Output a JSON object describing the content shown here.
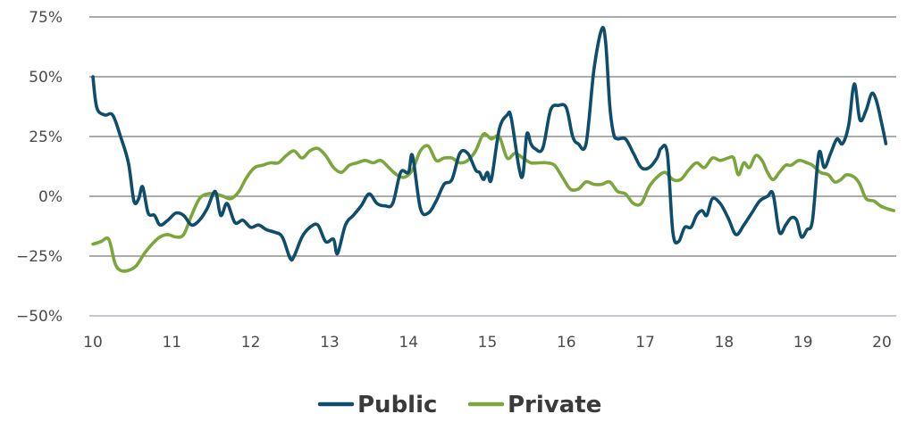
{
  "chart_data": {
    "type": "line",
    "title": "",
    "xlabel": "",
    "ylabel": "",
    "x_ticks": [
      "10",
      "11",
      "12",
      "13",
      "14",
      "15",
      "16",
      "17",
      "18",
      "19",
      "20"
    ],
    "y_ticks": [
      "75%",
      "50%",
      "25%",
      "0%",
      "−25%",
      "−50%"
    ],
    "xlim": [
      10,
      20.2
    ],
    "ylim": [
      -50,
      75
    ],
    "grid": "horizontal",
    "legend_position": "bottom-center",
    "series": [
      {
        "name": "Public",
        "color": "#0e4d6b",
        "points": [
          [
            10.0,
            50
          ],
          [
            10.05,
            37
          ],
          [
            10.15,
            34
          ],
          [
            10.25,
            34
          ],
          [
            10.35,
            25
          ],
          [
            10.45,
            14
          ],
          [
            10.52,
            -2
          ],
          [
            10.58,
            -1
          ],
          [
            10.63,
            4
          ],
          [
            10.7,
            -7
          ],
          [
            10.78,
            -8
          ],
          [
            10.85,
            -12
          ],
          [
            10.95,
            -10
          ],
          [
            11.05,
            -7
          ],
          [
            11.15,
            -8
          ],
          [
            11.25,
            -12
          ],
          [
            11.35,
            -10
          ],
          [
            11.45,
            -5
          ],
          [
            11.55,
            2
          ],
          [
            11.62,
            -8
          ],
          [
            11.7,
            -3
          ],
          [
            11.8,
            -11
          ],
          [
            11.9,
            -10
          ],
          [
            12.0,
            -13
          ],
          [
            12.1,
            -12
          ],
          [
            12.2,
            -14
          ],
          [
            12.3,
            -15
          ],
          [
            12.4,
            -17
          ],
          [
            12.5,
            -26
          ],
          [
            12.55,
            -25
          ],
          [
            12.65,
            -17
          ],
          [
            12.75,
            -13
          ],
          [
            12.85,
            -12
          ],
          [
            12.95,
            -19
          ],
          [
            13.05,
            -18
          ],
          [
            13.1,
            -24
          ],
          [
            13.2,
            -12
          ],
          [
            13.3,
            -8
          ],
          [
            13.4,
            -4
          ],
          [
            13.5,
            1
          ],
          [
            13.6,
            -3
          ],
          [
            13.7,
            -4
          ],
          [
            13.8,
            -3
          ],
          [
            13.9,
            10
          ],
          [
            14.0,
            10
          ],
          [
            14.05,
            17
          ],
          [
            14.15,
            -5
          ],
          [
            14.25,
            -7
          ],
          [
            14.35,
            -2
          ],
          [
            14.45,
            5
          ],
          [
            14.55,
            7
          ],
          [
            14.65,
            18
          ],
          [
            14.75,
            18
          ],
          [
            14.85,
            11
          ],
          [
            14.9,
            10
          ],
          [
            14.95,
            7
          ],
          [
            15.0,
            10
          ],
          [
            15.05,
            7
          ],
          [
            15.15,
            28
          ],
          [
            15.25,
            34
          ],
          [
            15.3,
            33
          ],
          [
            15.4,
            12
          ],
          [
            15.45,
            9
          ],
          [
            15.5,
            26
          ],
          [
            15.55,
            22
          ],
          [
            15.6,
            20
          ],
          [
            15.7,
            20
          ],
          [
            15.8,
            36
          ],
          [
            15.9,
            38
          ],
          [
            16.0,
            37
          ],
          [
            16.08,
            25
          ],
          [
            16.15,
            22
          ],
          [
            16.25,
            22
          ],
          [
            16.35,
            53
          ],
          [
            16.45,
            70
          ],
          [
            16.5,
            64
          ],
          [
            16.55,
            38
          ],
          [
            16.6,
            26
          ],
          [
            16.65,
            24
          ],
          [
            16.75,
            24
          ],
          [
            16.85,
            18
          ],
          [
            16.95,
            12
          ],
          [
            17.05,
            12
          ],
          [
            17.15,
            16
          ],
          [
            17.2,
            20
          ],
          [
            17.28,
            18
          ],
          [
            17.35,
            -15
          ],
          [
            17.42,
            -19
          ],
          [
            17.5,
            -13
          ],
          [
            17.58,
            -13
          ],
          [
            17.65,
            -8
          ],
          [
            17.72,
            -6
          ],
          [
            17.78,
            -8
          ],
          [
            17.85,
            -1
          ],
          [
            17.95,
            -3
          ],
          [
            18.05,
            -9
          ],
          [
            18.15,
            -16
          ],
          [
            18.25,
            -12
          ],
          [
            18.35,
            -7
          ],
          [
            18.45,
            -2
          ],
          [
            18.55,
            0
          ],
          [
            18.62,
            1
          ],
          [
            18.7,
            -15
          ],
          [
            18.78,
            -12
          ],
          [
            18.85,
            -9
          ],
          [
            18.92,
            -10
          ],
          [
            18.98,
            -17
          ],
          [
            19.05,
            -14
          ],
          [
            19.12,
            -10
          ],
          [
            19.2,
            18
          ],
          [
            19.27,
            12
          ],
          [
            19.35,
            18
          ],
          [
            19.43,
            24
          ],
          [
            19.5,
            22
          ],
          [
            19.58,
            30
          ],
          [
            19.65,
            47
          ],
          [
            19.72,
            32
          ],
          [
            19.8,
            36
          ],
          [
            19.87,
            43
          ],
          [
            19.93,
            40
          ],
          [
            20.0,
            30
          ],
          [
            20.05,
            22
          ]
        ]
      },
      {
        "name": "Private",
        "color": "#7aa63c",
        "points": [
          [
            10.0,
            -20
          ],
          [
            10.1,
            -19
          ],
          [
            10.2,
            -18
          ],
          [
            10.28,
            -28
          ],
          [
            10.35,
            -31
          ],
          [
            10.45,
            -31
          ],
          [
            10.55,
            -29
          ],
          [
            10.65,
            -24
          ],
          [
            10.75,
            -20
          ],
          [
            10.85,
            -17
          ],
          [
            10.95,
            -16
          ],
          [
            11.05,
            -17
          ],
          [
            11.15,
            -16
          ],
          [
            11.25,
            -8
          ],
          [
            11.35,
            -1
          ],
          [
            11.45,
            1
          ],
          [
            11.55,
            1
          ],
          [
            11.65,
            0
          ],
          [
            11.75,
            -1
          ],
          [
            11.85,
            2
          ],
          [
            11.95,
            8
          ],
          [
            12.05,
            12
          ],
          [
            12.15,
            13
          ],
          [
            12.25,
            14
          ],
          [
            12.35,
            14
          ],
          [
            12.45,
            17
          ],
          [
            12.55,
            19
          ],
          [
            12.65,
            16
          ],
          [
            12.75,
            19
          ],
          [
            12.85,
            20
          ],
          [
            12.95,
            17
          ],
          [
            13.05,
            12
          ],
          [
            13.15,
            10
          ],
          [
            13.25,
            13
          ],
          [
            13.35,
            14
          ],
          [
            13.45,
            15
          ],
          [
            13.55,
            14
          ],
          [
            13.65,
            15
          ],
          [
            13.75,
            12
          ],
          [
            13.85,
            9
          ],
          [
            13.95,
            8
          ],
          [
            14.05,
            11
          ],
          [
            14.15,
            19
          ],
          [
            14.25,
            21
          ],
          [
            14.35,
            15
          ],
          [
            14.45,
            16
          ],
          [
            14.55,
            16
          ],
          [
            14.65,
            14
          ],
          [
            14.75,
            15
          ],
          [
            14.85,
            19
          ],
          [
            14.95,
            26
          ],
          [
            15.05,
            24
          ],
          [
            15.15,
            25
          ],
          [
            15.25,
            16
          ],
          [
            15.35,
            18
          ],
          [
            15.45,
            16
          ],
          [
            15.55,
            14
          ],
          [
            15.65,
            14
          ],
          [
            15.75,
            14
          ],
          [
            15.85,
            13
          ],
          [
            15.95,
            8
          ],
          [
            16.05,
            3
          ],
          [
            16.15,
            3
          ],
          [
            16.25,
            6
          ],
          [
            16.35,
            5
          ],
          [
            16.45,
            5
          ],
          [
            16.55,
            6
          ],
          [
            16.65,
            2
          ],
          [
            16.75,
            1
          ],
          [
            16.85,
            -3
          ],
          [
            16.95,
            -3
          ],
          [
            17.05,
            4
          ],
          [
            17.15,
            8
          ],
          [
            17.25,
            10
          ],
          [
            17.35,
            7
          ],
          [
            17.45,
            7
          ],
          [
            17.55,
            11
          ],
          [
            17.65,
            14
          ],
          [
            17.75,
            12
          ],
          [
            17.85,
            16
          ],
          [
            17.95,
            15
          ],
          [
            18.05,
            16
          ],
          [
            18.12,
            16
          ],
          [
            18.18,
            9
          ],
          [
            18.25,
            14
          ],
          [
            18.32,
            12
          ],
          [
            18.4,
            17
          ],
          [
            18.48,
            15
          ],
          [
            18.55,
            10
          ],
          [
            18.62,
            7
          ],
          [
            18.7,
            10
          ],
          [
            18.78,
            13
          ],
          [
            18.85,
            13
          ],
          [
            18.95,
            15
          ],
          [
            19.05,
            14
          ],
          [
            19.12,
            13
          ],
          [
            19.22,
            10
          ],
          [
            19.32,
            9
          ],
          [
            19.4,
            6
          ],
          [
            19.48,
            7
          ],
          [
            19.55,
            9
          ],
          [
            19.65,
            8
          ],
          [
            19.72,
            5
          ],
          [
            19.8,
            -1
          ],
          [
            19.9,
            -2
          ],
          [
            19.98,
            -4
          ],
          [
            20.05,
            -5
          ],
          [
            20.15,
            -6
          ]
        ]
      }
    ]
  }
}
